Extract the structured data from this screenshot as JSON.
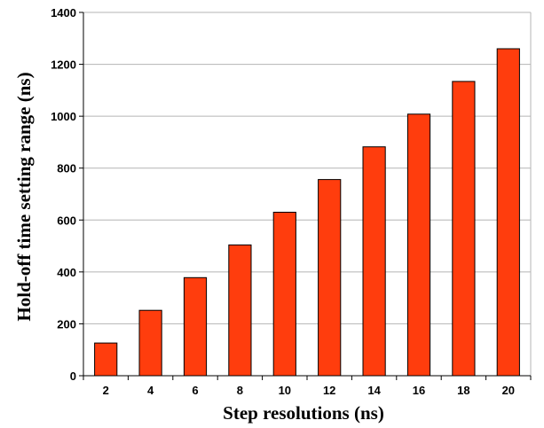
{
  "chart_data": {
    "type": "bar",
    "categories": [
      "2",
      "4",
      "6",
      "8",
      "10",
      "12",
      "14",
      "16",
      "18",
      "20"
    ],
    "values": [
      126,
      252,
      378,
      504,
      630,
      756,
      882,
      1008,
      1134,
      1260
    ],
    "xlabel": "Step resolutions (ns)",
    "ylabel": "Hold-off time setting range (ns)",
    "ylim": [
      0,
      1400
    ],
    "yticks": [
      0,
      200,
      400,
      600,
      800,
      1000,
      1200,
      1400
    ],
    "grid": true,
    "legend": "none",
    "colors": {
      "bar_fill": "#FF3D0D",
      "bar_stroke": "#000000",
      "grid": "#B4B4B4",
      "axis": "#000000"
    }
  }
}
